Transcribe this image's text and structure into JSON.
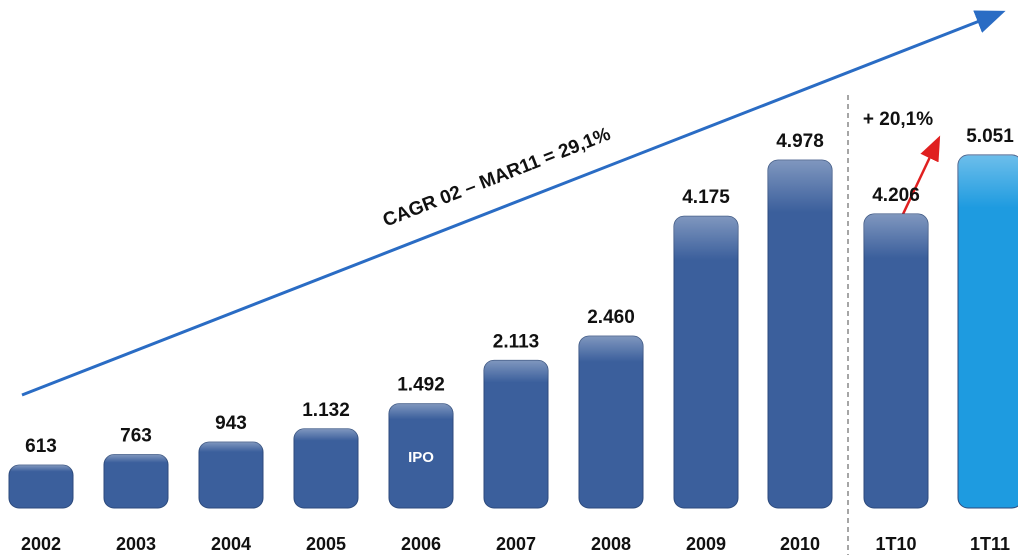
{
  "chart_data": {
    "type": "bar",
    "categories": [
      "2002",
      "2003",
      "2004",
      "2005",
      "2006",
      "2007",
      "2008",
      "2009",
      "2010",
      "1T10",
      "1T11"
    ],
    "values": [
      613,
      763,
      943,
      1132,
      1492,
      2113,
      2460,
      4175,
      4978,
      4206,
      5051
    ],
    "value_labels": [
      "613",
      "763",
      "943",
      "1.132",
      "1.492",
      "2.113",
      "2.460",
      "4.175",
      "4.978",
      "4.206",
      "5.051"
    ],
    "colors": [
      "#3b5f9c",
      "#3b5f9c",
      "#3b5f9c",
      "#3b5f9c",
      "#3b5f9c",
      "#3b5f9c",
      "#3b5f9c",
      "#3b5f9c",
      "#3b5f9c",
      "#3b5f9c",
      "#1e9be0"
    ],
    "annotations": {
      "cagr": "CAGR 02 – MAR11 = 29,1%",
      "growth": "+ 20,1%",
      "ipo": "IPO"
    }
  }
}
